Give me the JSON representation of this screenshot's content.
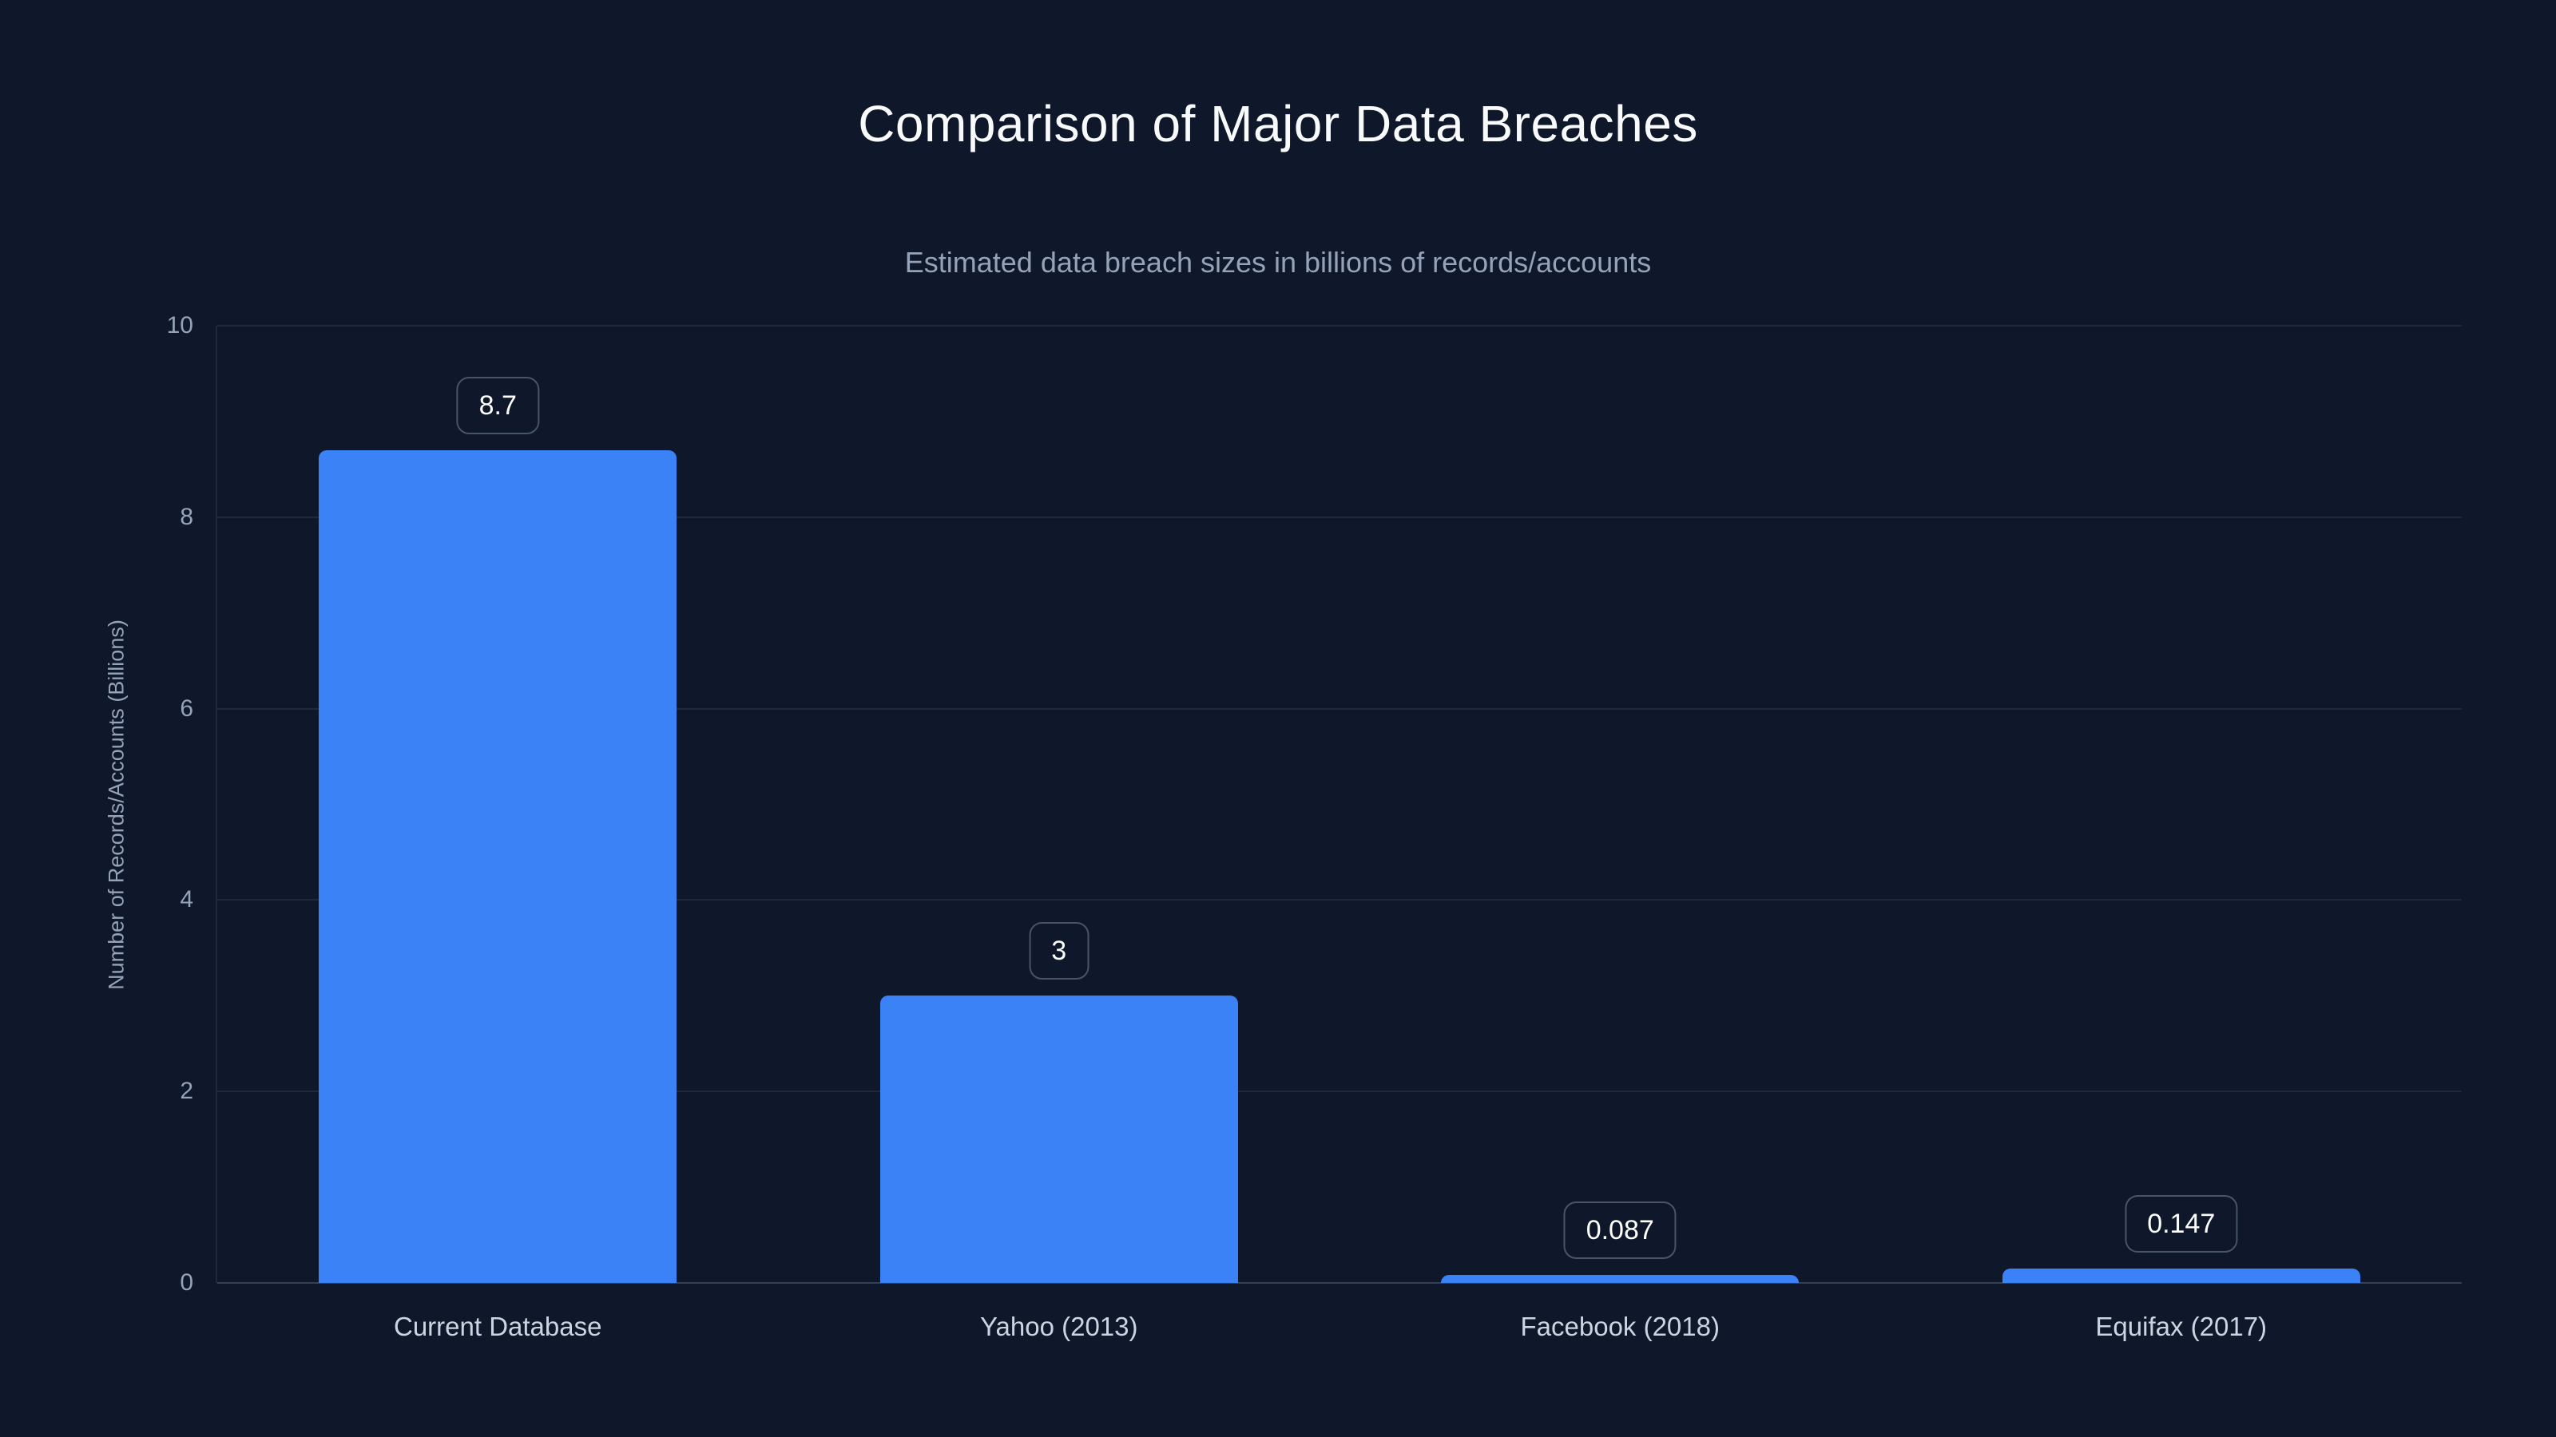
{
  "page": {
    "background_color": "#0f172a"
  },
  "chart_data": {
    "type": "bar",
    "title": "Comparison of Major Data Breaches",
    "subtitle": "Estimated data breach sizes in billions of records/accounts",
    "xlabel": "",
    "ylabel": "Number of Records/Accounts (Billions)",
    "categories": [
      "Current Database",
      "Yahoo (2013)",
      "Facebook (2018)",
      "Equifax (2017)"
    ],
    "values": [
      8.7,
      3,
      0.087,
      0.147
    ],
    "value_labels": [
      "8.7",
      "3",
      "0.087",
      "0.147"
    ],
    "ylim": [
      0,
      10
    ],
    "yticks": [
      0,
      2,
      4,
      6,
      8,
      10
    ],
    "grid": "horizontal",
    "legend": "none",
    "colors": {
      "bar": "#3b82f6",
      "background": "#0f172a",
      "grid": "#1e293b",
      "zero_axis": "#334155",
      "title_text": "#f8fafc",
      "subtitle_text": "#94a3b8",
      "tick_text": "#94a3b8",
      "category_text": "#cbd5e1",
      "value_text": "#ffffff",
      "badge_border": "#475569"
    }
  }
}
